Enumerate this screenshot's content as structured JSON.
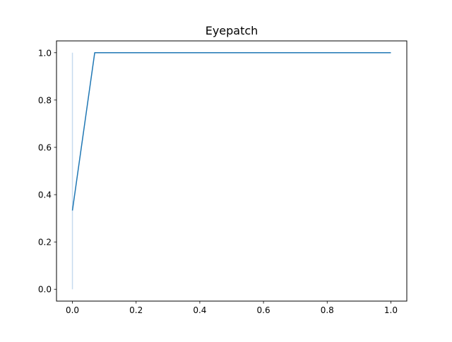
{
  "chart_data": {
    "type": "line",
    "title": "Eyepatch",
    "xlabel": "",
    "ylabel": "",
    "xlim": [
      -0.05,
      1.05
    ],
    "ylim": [
      -0.05,
      1.05
    ],
    "xticks": [
      0.0,
      0.2,
      0.4,
      0.6,
      0.8,
      1.0
    ],
    "xtick_labels": [
      "0.0",
      "0.2",
      "0.4",
      "0.6",
      "0.8",
      "1.0"
    ],
    "yticks": [
      0.0,
      0.2,
      0.4,
      0.6,
      0.8,
      1.0
    ],
    "ytick_labels": [
      "0.0",
      "0.2",
      "0.4",
      "0.6",
      "0.8",
      "1.0"
    ],
    "grid": false,
    "series": [
      {
        "x": [
          0.0,
          0.07,
          1.0
        ],
        "y": [
          0.333,
          1.0,
          1.0
        ],
        "color": "#1f77b4"
      }
    ],
    "band": {
      "x": [
        0.0,
        0.0
      ],
      "y": [
        0.0,
        1.0
      ],
      "color": "#c6dbef"
    }
  }
}
